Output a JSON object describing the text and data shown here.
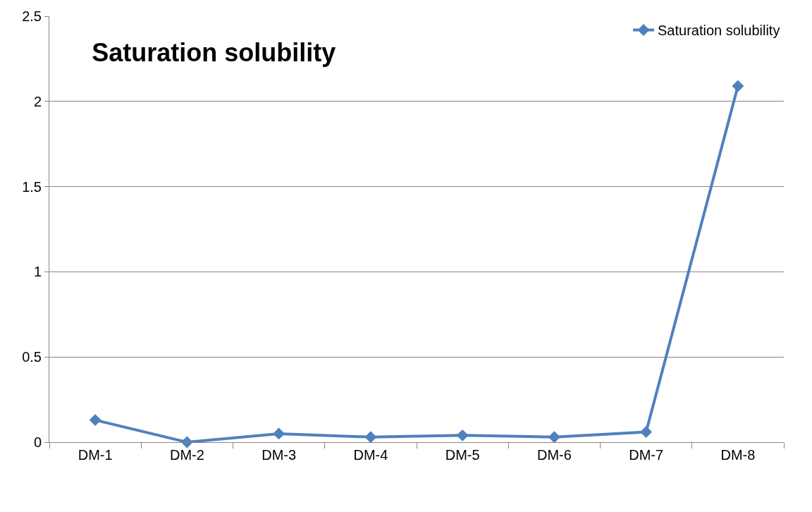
{
  "chart_data": {
    "type": "line",
    "title": "Saturation solubility",
    "categories": [
      "DM-1",
      "DM-2",
      "DM-3",
      "DM-4",
      "DM-5",
      "DM-6",
      "DM-7",
      "DM-8"
    ],
    "series": [
      {
        "name": "Saturation solubility",
        "color": "#4f81bd",
        "values": [
          0.13,
          0.0,
          0.05,
          0.03,
          0.04,
          0.03,
          0.06,
          2.09
        ]
      }
    ],
    "ylim": [
      0,
      2.5
    ],
    "yticks": [
      0,
      0.5,
      1,
      1.5,
      2,
      2.5
    ],
    "grid": "y",
    "legend": "top right",
    "marker": "diamond",
    "line_style": "solid"
  }
}
